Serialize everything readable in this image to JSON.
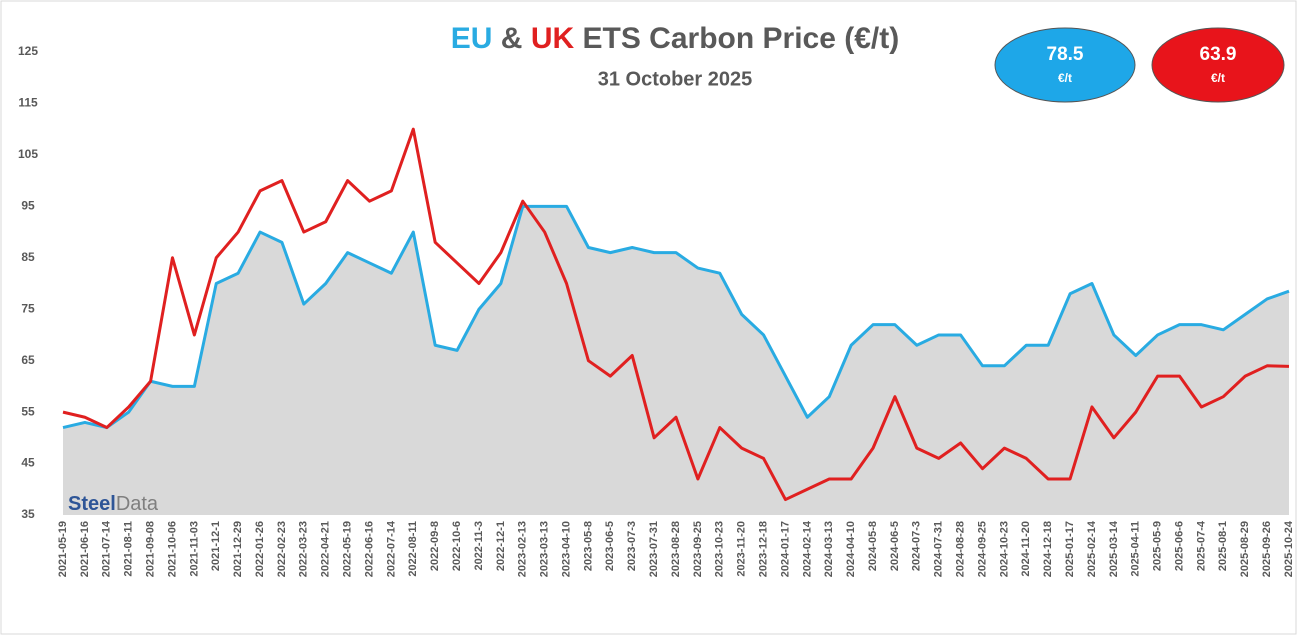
{
  "chart_data": {
    "type": "line",
    "title_parts": [
      "EU",
      "&",
      "UK",
      "ETS Carbon Price (€/t)"
    ],
    "subtitle": "31 October 2025",
    "badges": [
      {
        "value": 78.5,
        "unit": "€/t",
        "color": "#1ea7e8"
      },
      {
        "value": 63.9,
        "unit": "€/t",
        "color": "#e8141b"
      }
    ],
    "logo_parts": [
      "Steel",
      "Data"
    ],
    "categories": [
      "2021-05-19",
      "2021-06-16",
      "2021-07-14",
      "2021-08-11",
      "2021-09-08",
      "2021-10-06",
      "2021-11-03",
      "2021-12-1",
      "2021-12-29",
      "2022-01-26",
      "2022-02-23",
      "2022-03-23",
      "2022-04-21",
      "2022-05-19",
      "2022-06-16",
      "2022-07-14",
      "2022-08-11",
      "2022-09-8",
      "2022-10-6",
      "2022-11-3",
      "2022-12-1",
      "2023-02-13",
      "2023-03-13",
      "2023-04-10",
      "2023-05-8",
      "2023-06-5",
      "2023-07-3",
      "2023-07-31",
      "2023-08-28",
      "2023-09-25",
      "2023-10-23",
      "2023-11-20",
      "2023-12-18",
      "2024-01-17",
      "2024-02-14",
      "2024-03-13",
      "2024-04-10",
      "2024-05-8",
      "2024-06-5",
      "2024-07-3",
      "2024-07-31",
      "2024-08-28",
      "2024-09-25",
      "2024-10-23",
      "2024-11-20",
      "2024-12-18",
      "2025-01-17",
      "2025-02-14",
      "2025-03-14",
      "2025-04-11",
      "2025-05-9",
      "2025-06-6",
      "2025-07-4",
      "2025-08-1",
      "2025-08-29",
      "2025-09-26",
      "2025-10-24"
    ],
    "series": [
      {
        "name": "EU",
        "color": "#29abe2",
        "values": [
          52,
          53,
          52,
          55,
          61,
          60,
          60,
          80,
          82,
          90,
          88,
          76,
          80,
          86,
          84,
          82,
          90,
          68,
          67,
          75,
          80,
          95,
          95,
          95,
          87,
          86,
          87,
          86,
          86,
          83,
          82,
          74,
          70,
          62,
          54,
          58,
          68,
          72,
          72,
          68,
          70,
          70,
          64,
          64,
          68,
          68,
          78,
          80,
          70,
          66,
          70,
          72,
          72,
          71,
          74,
          77,
          78.5
        ]
      },
      {
        "name": "UK",
        "color": "#e02020",
        "values": [
          55,
          54,
          52,
          56,
          61,
          85,
          70,
          85,
          90,
          98,
          100,
          90,
          92,
          100,
          96,
          98,
          110,
          88,
          84,
          80,
          86,
          96,
          90,
          80,
          65,
          62,
          66,
          50,
          54,
          42,
          52,
          48,
          46,
          38,
          40,
          42,
          42,
          48,
          58,
          48,
          46,
          49,
          44,
          48,
          46,
          42,
          42,
          56,
          50,
          55,
          62,
          62,
          56,
          58,
          62,
          64,
          63.9
        ]
      }
    ],
    "area_color": "#d9d9d9",
    "ylim": [
      35,
      125
    ],
    "yticks": [
      35,
      45,
      55,
      65,
      75,
      85,
      95,
      105,
      115,
      125
    ]
  }
}
